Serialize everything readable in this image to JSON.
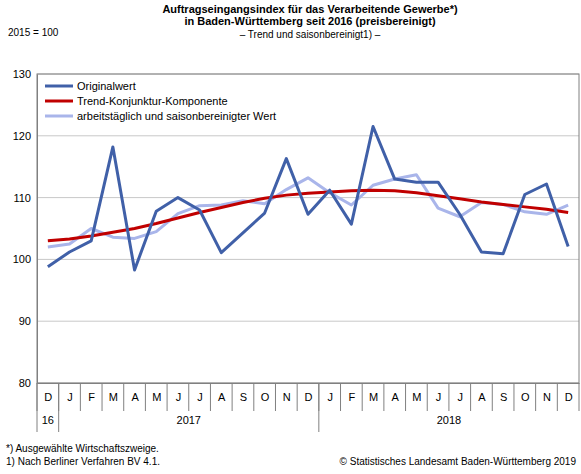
{
  "chart_data": {
    "type": "line",
    "title": [
      "Auftragseingangsindex für das Verarbeitende Gewerbe*)",
      "in Baden-Württemberg seit 2016 (preisbereinigt)"
    ],
    "subtitle": "– Trend und saisonbereinigt1) –",
    "y_label": "2015 = 100",
    "categories": [
      "D",
      "J",
      "F",
      "M",
      "A",
      "M",
      "J",
      "J",
      "A",
      "S",
      "O",
      "N",
      "D",
      "J",
      "F",
      "M",
      "A",
      "M",
      "J",
      "J",
      "A",
      "S",
      "O",
      "N",
      "D"
    ],
    "x_groups": [
      {
        "label": "16",
        "count": 1
      },
      {
        "label": "2017",
        "count": 12
      },
      {
        "label": "2018",
        "count": 12
      }
    ],
    "series": [
      {
        "name": "Originalwert",
        "color": "#4060a8",
        "values": [
          98.8,
          101.2,
          103.0,
          118.2,
          98.3,
          107.8,
          110.0,
          108.0,
          101.1,
          104.3,
          107.5,
          116.3,
          107.3,
          111.2,
          105.7,
          121.5,
          113.0,
          112.5,
          112.5,
          107.3,
          101.2,
          100.9,
          110.5,
          112.2,
          102.1
        ]
      },
      {
        "name": "Trend-Konjunktur-Komponente",
        "color": "#c00000",
        "values": [
          103.0,
          103.3,
          103.8,
          104.4,
          105.0,
          105.8,
          106.7,
          107.6,
          108.4,
          109.2,
          109.9,
          110.4,
          110.7,
          110.9,
          111.1,
          111.2,
          111.1,
          110.8,
          110.3,
          109.8,
          109.3,
          108.9,
          108.5,
          108.1,
          107.6
        ]
      },
      {
        "name": "arbeitstäglich und saisonbereinigter Wert",
        "color": "#a9b5ea",
        "values": [
          102.0,
          102.5,
          105.0,
          103.6,
          103.4,
          104.5,
          107.4,
          108.7,
          108.8,
          109.5,
          109.0,
          111.3,
          113.2,
          110.8,
          108.8,
          112.0,
          113.0,
          113.7,
          108.3,
          106.9,
          109.2,
          108.9,
          107.7,
          107.3,
          108.8
        ]
      }
    ],
    "ylim": [
      80,
      130
    ],
    "yticks": [
      80,
      90,
      100,
      110,
      120,
      130
    ],
    "grid": true,
    "legend": "upper left",
    "footnotes": [
      "*) Ausgewählte Wirtschaftszweige.",
      "1) Nach Berliner Verfahren BV 4.1."
    ],
    "source": "© Statistisches Landesamt Baden-Württemberg 2019"
  }
}
